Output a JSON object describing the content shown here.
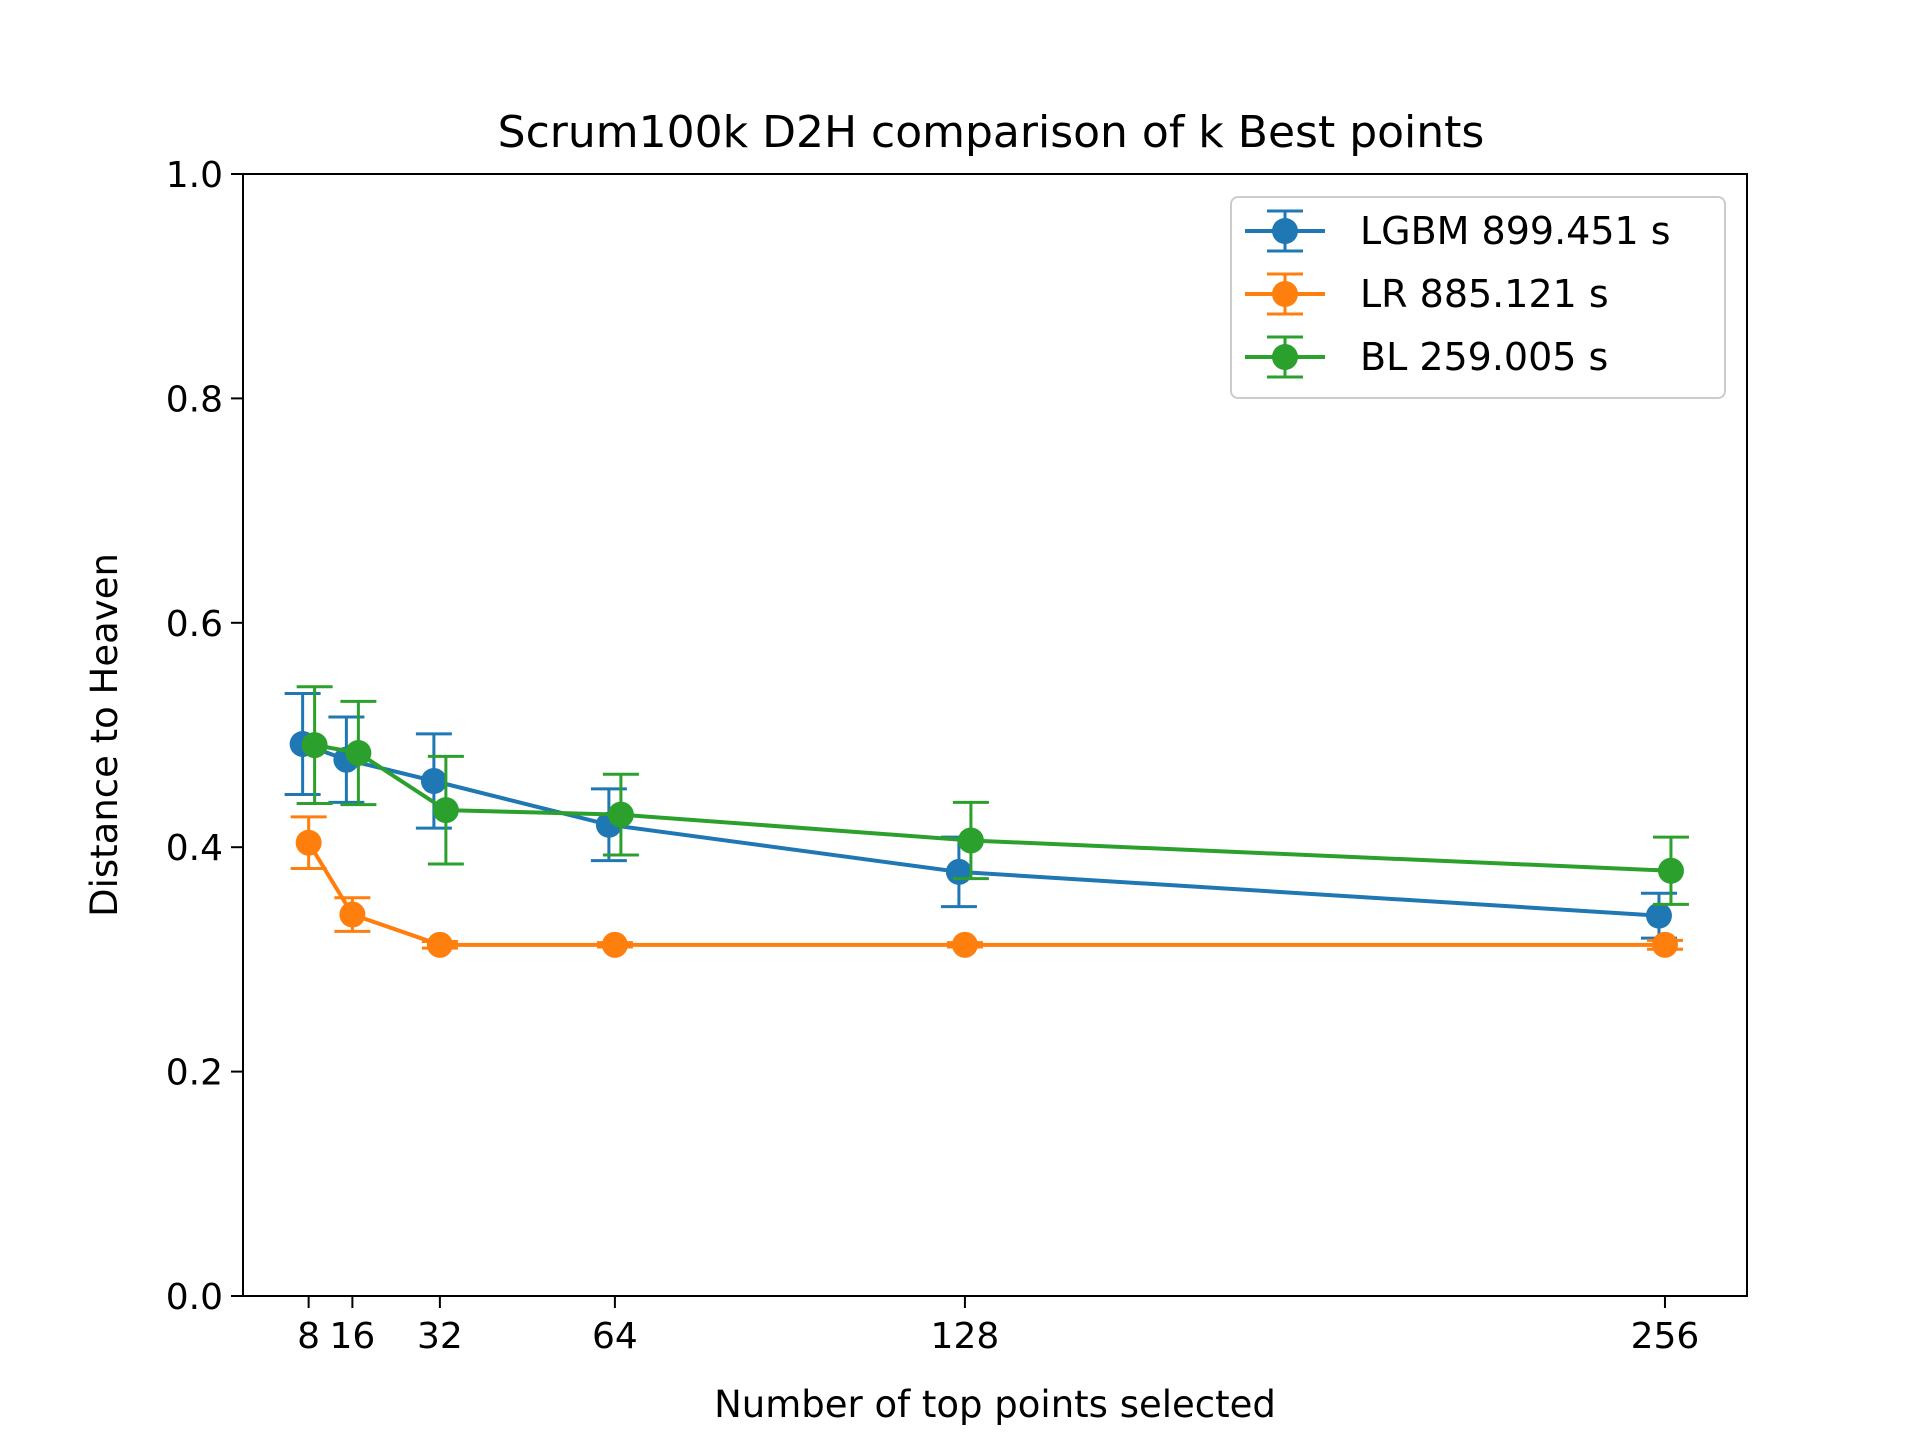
{
  "chart_data": {
    "type": "line",
    "title": "Scrum100k D2H comparison of k Best points",
    "xlabel": "Number of top points selected",
    "ylabel": "Distance to Heaven",
    "x_ticks": [
      8,
      16,
      32,
      64,
      128,
      256
    ],
    "x_tick_labels": [
      "8",
      "16",
      "32",
      "64",
      "128",
      "256"
    ],
    "y_ticks": [
      0.0,
      0.2,
      0.4,
      0.6,
      0.8,
      1.0
    ],
    "y_tick_labels": [
      "0.0",
      "0.2",
      "0.4",
      "0.6",
      "0.8",
      "1.0"
    ],
    "xlim": [
      -4,
      271
    ],
    "ylim": [
      0.0,
      1.0
    ],
    "grid": false,
    "legend_position": "top-right",
    "series": [
      {
        "name": "LGBM 899.451 s",
        "color": "#1f77b4",
        "x": [
          8,
          16,
          32,
          64,
          128,
          256
        ],
        "y": [
          0.492,
          0.478,
          0.459,
          0.42,
          0.378,
          0.339
        ],
        "err": [
          0.045,
          0.038,
          0.042,
          0.032,
          0.031,
          0.02
        ]
      },
      {
        "name": "LR 885.121 s",
        "color": "#ff7f0e",
        "x": [
          8,
          16,
          32,
          64,
          128,
          256
        ],
        "y": [
          0.404,
          0.34,
          0.313,
          0.313,
          0.313,
          0.313
        ],
        "err": [
          0.023,
          0.015,
          0.003,
          0.002,
          0.002,
          0.004
        ]
      },
      {
        "name": "BL 259.005 s",
        "color": "#2ca02c",
        "x": [
          8,
          16,
          32,
          64,
          128,
          256
        ],
        "y": [
          0.491,
          0.484,
          0.433,
          0.429,
          0.406,
          0.379
        ],
        "err": [
          0.052,
          0.046,
          0.048,
          0.036,
          0.034,
          0.03
        ]
      }
    ]
  }
}
